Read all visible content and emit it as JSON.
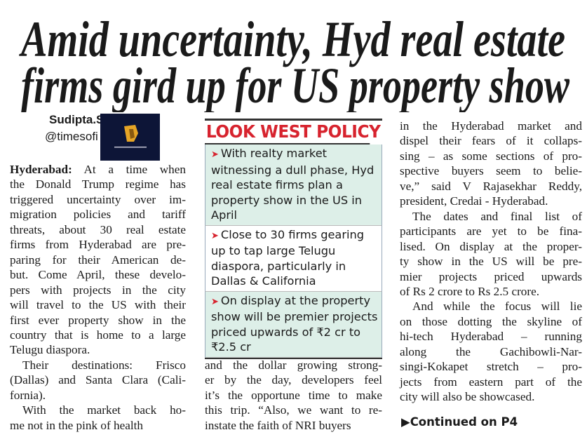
{
  "headline": {
    "line1": "Amid uncertainty, Hyd real estate",
    "line2": "firms gird up for US property show"
  },
  "byline": {
    "author": "Sudipta.S",
    "handle": "@timesofi"
  },
  "logo": {
    "text": "logo overlay"
  },
  "column1": {
    "dateline": "Hyderabad:",
    "lines": [
      " At a time when",
      "the Donald Trump regime has",
      "triggered uncertainty over im-",
      "migration policies and tariff",
      "threats, about 30 real estate",
      "firms from Hyderabad are pre-",
      "paring for their American de-",
      "but. Come April, these develo-",
      "pers with projects in the city",
      "will travel to the US with their",
      "first ever property show in the",
      "country that is home to a large",
      "Telugu diaspora.",
      "Their destinations: Frisco",
      "(Dallas) and Santa Clara (Cali-",
      "fornia).",
      "With the market back ho-",
      "me not in the pink of health"
    ]
  },
  "factbox": {
    "title": "LOOK WEST POLICY",
    "bullets": [
      "With realty market witnessing a dull phase, Hyd real estate firms plan a property show in the US in April",
      "Close to 30 firms gearing up to tap large Telugu diaspora, particularly in Dallas & California",
      "On display at the property show will be premier projects priced upwards of ₹2 cr to ₹2.5 cr"
    ],
    "bullet_icon": "red-arrow-icon",
    "accent_color": "#d7232e",
    "shade_color": "#ddefe8"
  },
  "column2": {
    "lines": [
      "and the dollar growing strong-",
      "er by the day, developers feel",
      "it’s the opportune time to make",
      "this trip. “Also, we want to re-",
      "instate the faith of NRI buyers"
    ]
  },
  "column3": {
    "lines": [
      "in the Hyderabad market and",
      "dispel their fears of it collaps-",
      "sing – as some sections of pro-",
      "spective buyers seem to belie-",
      "ve,” said V Rajasekhar Reddy,",
      "president, Credai - Hyderabad.",
      "The dates and final list of",
      "participants are yet to be fina-",
      "lised. On display at the proper-",
      "ty show in the US will be pre-",
      "mier projects priced upwards",
      "of Rs 2 crore to Rs 2.5 crore.",
      "And while the focus will lie",
      "on those dotting the skyline of",
      "hi-tech Hyderabad – running",
      "along the Gachibowli-Nar-",
      "singi-Kokapet stretch – pro-",
      "jects from eastern part of the",
      "city will also be showcased."
    ],
    "continued": "Continued on P4"
  }
}
